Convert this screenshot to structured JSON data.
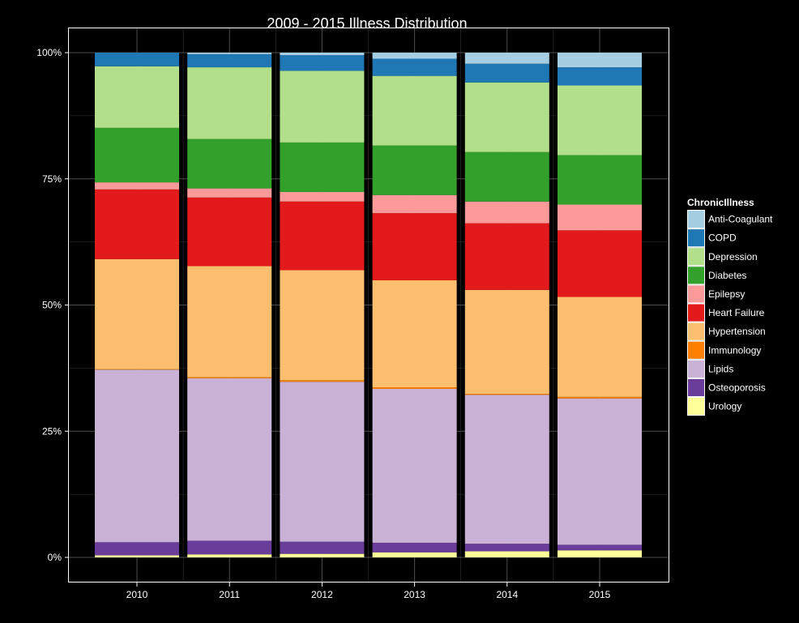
{
  "chart_data": {
    "type": "bar",
    "stacked": true,
    "normalized": true,
    "title": "2009 - 2015 Illness Distribution",
    "xlabel": "",
    "ylabel": "",
    "categories": [
      "2010",
      "2011",
      "2012",
      "2013",
      "2014",
      "2015"
    ],
    "y_ticks": [
      "0%",
      "25%",
      "50%",
      "75%",
      "100%"
    ],
    "ylim": [
      0,
      1
    ],
    "legend": {
      "title": "ChronicIllness",
      "position": "right"
    },
    "series": [
      {
        "name": "Urology",
        "color": "#ffff99",
        "values": [
          0.004,
          0.006,
          0.007,
          0.01,
          0.012,
          0.014
        ]
      },
      {
        "name": "Osteoporosis",
        "color": "#6a3d9a",
        "values": [
          0.026,
          0.027,
          0.024,
          0.019,
          0.015,
          0.011
        ]
      },
      {
        "name": "Lipids",
        "color": "#cab2d6",
        "values": [
          0.342,
          0.322,
          0.317,
          0.305,
          0.295,
          0.29
        ]
      },
      {
        "name": "Immunology",
        "color": "#ff7f00",
        "values": [
          0.001,
          0.002,
          0.003,
          0.003,
          0.002,
          0.003
        ]
      },
      {
        "name": "Hypertension",
        "color": "#fdbf6f",
        "values": [
          0.218,
          0.22,
          0.218,
          0.212,
          0.206,
          0.198
        ]
      },
      {
        "name": "Heart Failure",
        "color": "#e31a1c",
        "values": [
          0.138,
          0.136,
          0.136,
          0.133,
          0.132,
          0.132
        ]
      },
      {
        "name": "Epilepsy",
        "color": "#fb9a99",
        "values": [
          0.014,
          0.018,
          0.019,
          0.036,
          0.043,
          0.051
        ]
      },
      {
        "name": "Diabetes",
        "color": "#33a02c",
        "values": [
          0.108,
          0.098,
          0.098,
          0.098,
          0.098,
          0.098
        ]
      },
      {
        "name": "Depression",
        "color": "#b2df8a",
        "values": [
          0.122,
          0.142,
          0.142,
          0.138,
          0.138,
          0.138
        ]
      },
      {
        "name": "COPD",
        "color": "#1f78b4",
        "values": [
          0.027,
          0.026,
          0.031,
          0.034,
          0.037,
          0.036
        ]
      },
      {
        "name": "Anti-Coagulant",
        "color": "#a6cee3",
        "values": [
          0.0,
          0.003,
          0.005,
          0.012,
          0.022,
          0.029
        ]
      }
    ]
  }
}
